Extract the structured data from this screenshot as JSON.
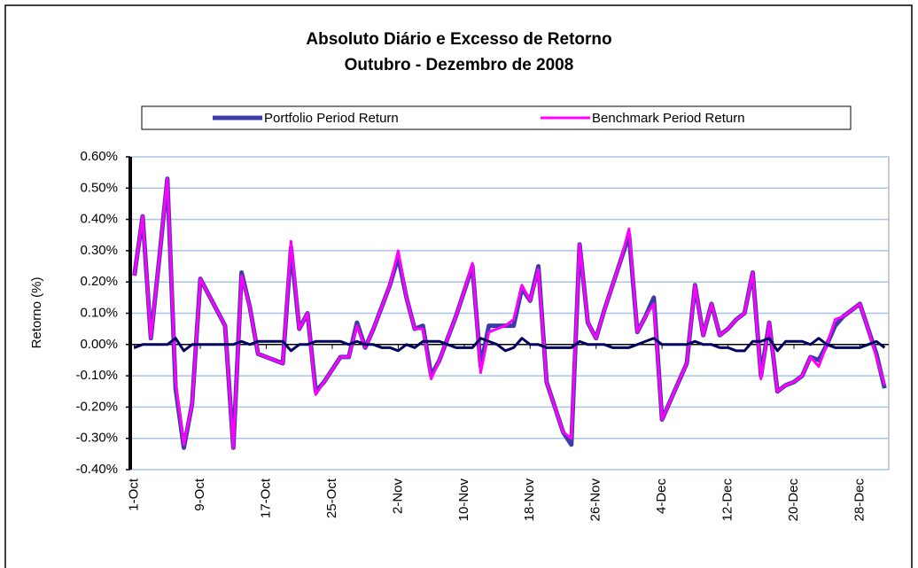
{
  "chart_data": {
    "type": "line",
    "title": [
      "Absoluto Diário e Excesso de Retorno",
      "Outubro - Dezembro de 2008"
    ],
    "y_label": "Retorno (%)",
    "categories": [
      "1-Oct",
      null,
      null,
      null,
      null,
      null,
      null,
      null,
      "9-Oct",
      null,
      null,
      null,
      null,
      null,
      null,
      null,
      "17-Oct",
      null,
      null,
      null,
      null,
      null,
      null,
      null,
      "25-Oct",
      null,
      null,
      null,
      null,
      null,
      null,
      null,
      "2-Nov",
      null,
      null,
      null,
      null,
      null,
      null,
      null,
      "10-Nov",
      null,
      null,
      null,
      null,
      null,
      null,
      null,
      "18-Nov",
      null,
      null,
      null,
      null,
      null,
      null,
      null,
      "26-Nov",
      null,
      null,
      null,
      null,
      null,
      null,
      null,
      "4-Dec",
      null,
      null,
      null,
      null,
      null,
      null,
      null,
      "12-Dec",
      null,
      null,
      null,
      null,
      null,
      null,
      null,
      "20-Dec",
      null,
      null,
      null,
      null,
      null,
      null,
      null,
      "28-Dec",
      null,
      null,
      null
    ],
    "series": [
      {
        "name": "Portfolio Period Return",
        "color": "#3c3ca8",
        "width": 5,
        "values": [
          0.22,
          0.41,
          0.02,
          0.27,
          0.53,
          -0.14,
          -0.33,
          -0.19,
          0.21,
          0.16,
          0.11,
          0.06,
          -0.33,
          0.23,
          0.12,
          -0.03,
          -0.04,
          -0.05,
          -0.06,
          0.31,
          0.05,
          0.1,
          -0.15,
          -0.12,
          -0.08,
          -0.04,
          -0.04,
          0.07,
          -0.01,
          0.05,
          0.12,
          0.19,
          0.28,
          0.15,
          0.05,
          0.06,
          -0.1,
          -0.05,
          0.02,
          0.09,
          0.17,
          0.25,
          -0.07,
          0.06,
          0.06,
          0.06,
          0.06,
          0.18,
          0.14,
          0.25,
          -0.12,
          -0.2,
          -0.28,
          -0.32,
          0.32,
          0.07,
          0.02,
          0.11,
          0.19,
          0.27,
          0.35,
          0.04,
          0.09,
          0.15,
          -0.24,
          -0.18,
          -0.12,
          -0.06,
          0.19,
          0.03,
          0.13,
          0.03,
          0.05,
          0.08,
          0.1,
          0.23,
          -0.1,
          0.07,
          -0.15,
          -0.13,
          -0.12,
          -0.1,
          -0.04,
          -0.05,
          0.0,
          0.06,
          0.09,
          0.11,
          0.13,
          0.05,
          -0.03,
          -0.14
        ]
      },
      {
        "name": "Benchmark Period Return",
        "color": "#ff00ff",
        "width": 3,
        "values": [
          0.22,
          0.41,
          0.02,
          0.27,
          0.53,
          -0.12,
          -0.32,
          -0.19,
          0.21,
          0.16,
          0.11,
          0.06,
          -0.33,
          0.22,
          0.12,
          -0.03,
          -0.04,
          -0.05,
          -0.06,
          0.33,
          0.05,
          0.1,
          -0.16,
          -0.12,
          -0.08,
          -0.04,
          -0.04,
          0.06,
          -0.01,
          0.05,
          0.12,
          0.19,
          0.3,
          0.15,
          0.05,
          0.05,
          -0.11,
          -0.05,
          0.02,
          0.09,
          0.17,
          0.26,
          -0.09,
          0.04,
          0.05,
          0.06,
          0.08,
          0.19,
          0.14,
          0.24,
          -0.12,
          -0.2,
          -0.28,
          -0.3,
          0.32,
          0.07,
          0.02,
          0.11,
          0.19,
          0.27,
          0.37,
          0.04,
          0.09,
          0.13,
          -0.24,
          -0.18,
          -0.12,
          -0.06,
          0.19,
          0.03,
          0.13,
          0.03,
          0.05,
          0.08,
          0.1,
          0.23,
          -0.11,
          0.07,
          -0.15,
          -0.13,
          -0.12,
          -0.1,
          -0.04,
          -0.07,
          0.0,
          0.08,
          0.09,
          0.11,
          0.13,
          0.05,
          -0.04,
          -0.13
        ]
      },
      {
        "color": "#000060",
        "width": 3,
        "values": [
          -0.01,
          0.0,
          0.0,
          0.0,
          0.0,
          0.02,
          -0.02,
          0.0,
          0.0,
          0.0,
          0.0,
          0.0,
          0.0,
          0.01,
          0.0,
          0.01,
          0.01,
          0.01,
          0.01,
          -0.02,
          0.0,
          0.0,
          0.01,
          0.01,
          0.01,
          0.01,
          0.0,
          0.01,
          0.0,
          0.0,
          -0.01,
          -0.01,
          -0.02,
          0.0,
          -0.01,
          0.01,
          0.01,
          0.01,
          0.0,
          -0.01,
          -0.01,
          -0.01,
          0.02,
          0.01,
          0.0,
          -0.02,
          -0.01,
          0.02,
          0.0,
          0.0,
          -0.01,
          -0.01,
          -0.01,
          -0.01,
          0.01,
          0.0,
          0.0,
          0.0,
          -0.01,
          -0.01,
          -0.01,
          0.0,
          0.01,
          0.02,
          0.0,
          0.0,
          0.0,
          0.0,
          0.01,
          0.0,
          0.0,
          -0.01,
          -0.01,
          -0.02,
          -0.02,
          0.01,
          0.01,
          0.02,
          -0.02,
          0.01,
          0.01,
          0.01,
          0.0,
          0.02,
          0.0,
          -0.01,
          -0.01,
          -0.01,
          -0.01,
          0.0,
          0.01,
          -0.01
        ]
      }
    ],
    "ylim": [
      -0.4,
      0.6
    ],
    "yticks": [
      {
        "value": -0.4,
        "label": "-0.40%"
      },
      {
        "value": -0.3,
        "label": "-0.30%"
      },
      {
        "value": -0.2,
        "label": "-0.20%"
      },
      {
        "value": -0.1,
        "label": "-0.10%"
      },
      {
        "value": 0,
        "label": "0.00%"
      },
      {
        "value": 0.1,
        "label": "0.10%"
      },
      {
        "value": 0.2,
        "label": "0.20%"
      },
      {
        "value": 0.3,
        "label": "0.30%"
      },
      {
        "value": 0.4,
        "label": "0.40%"
      },
      {
        "value": 0.5,
        "label": "0.50%"
      },
      {
        "value": 0.6,
        "label": "0.60%"
      }
    ],
    "grid": true,
    "legend": "top"
  }
}
